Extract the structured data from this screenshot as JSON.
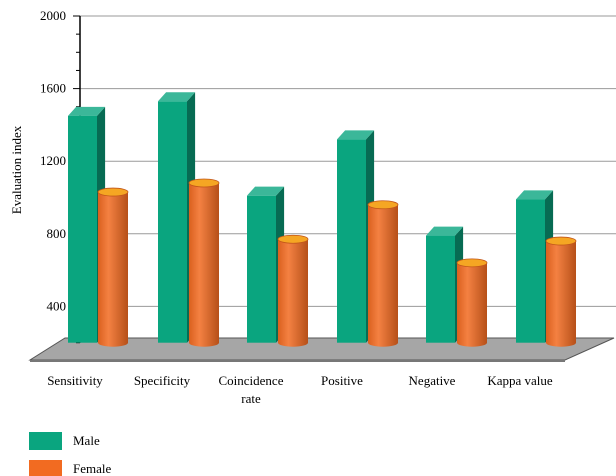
{
  "chart_data": {
    "type": "bar",
    "title": "",
    "xlabel": "",
    "ylabel": "Evaluation index",
    "ylim": [
      200,
      2000
    ],
    "yticks": [
      400,
      800,
      1200,
      1600,
      2000
    ],
    "grid": true,
    "legend_position": "bottom-left",
    "categories": [
      "Sensitivity",
      "Specificity",
      "Coincidence rate",
      "Positive",
      "Negative",
      "Kappa value"
    ],
    "category_label_lines": [
      [
        "Sensitivity"
      ],
      [
        "Specificity"
      ],
      [
        "Coincidence",
        "rate"
      ],
      [
        "Positive"
      ],
      [
        "Negative"
      ],
      [
        "Kappa value"
      ]
    ],
    "series": [
      {
        "name": "Male",
        "values": [
          1450,
          1530,
          1010,
          1320,
          790,
          990
        ],
        "color": "#0aa57f",
        "shape": "box"
      },
      {
        "name": "Female",
        "values": [
          1030,
          1080,
          770,
          960,
          640,
          760
        ],
        "color": "#f26b21",
        "shape": "cylinder"
      }
    ]
  }
}
